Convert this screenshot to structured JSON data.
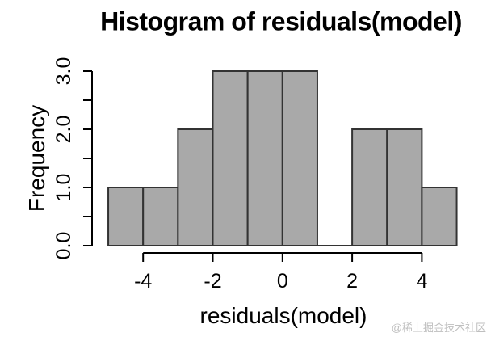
{
  "watermark_text": "@稀土掘金技术社区",
  "colors": {
    "background": "#ffffff",
    "bar_fill": "#a9a9a9",
    "bar_border": "#333333",
    "axis": "#000000",
    "text": "#000000",
    "watermark": "#bfbfbf"
  },
  "chart_data": {
    "type": "bar",
    "subtype": "histogram",
    "title": "Histogram of residuals(model)",
    "xlabel": "residuals(model)",
    "ylabel": "Frequency",
    "bin_edges": [
      -5,
      -4,
      -3,
      -2,
      -1,
      0,
      1,
      2,
      3,
      4,
      5
    ],
    "counts": [
      1,
      1,
      2,
      3,
      3,
      3,
      0,
      2,
      2,
      1
    ],
    "xlim": [
      -5,
      5
    ],
    "ylim": [
      0,
      3
    ],
    "x_ticks": [
      {
        "value": -4,
        "label": "-4"
      },
      {
        "value": -2,
        "label": "-2"
      },
      {
        "value": 0,
        "label": "0"
      },
      {
        "value": 2,
        "label": "2"
      },
      {
        "value": 4,
        "label": "4"
      }
    ],
    "y_ticks": [
      {
        "value": 0,
        "label": "0.0"
      },
      {
        "value": 0.5,
        "label": ""
      },
      {
        "value": 1,
        "label": "1.0"
      },
      {
        "value": 1.5,
        "label": ""
      },
      {
        "value": 2,
        "label": "2.0"
      },
      {
        "value": 2.5,
        "label": ""
      },
      {
        "value": 3,
        "label": "3.0"
      }
    ],
    "grid": false,
    "legend": false
  }
}
